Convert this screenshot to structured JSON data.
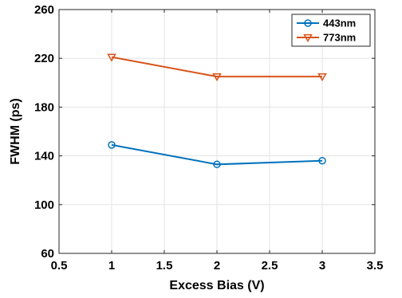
{
  "chart_data": {
    "type": "line",
    "title": "",
    "xlabel": "Excess Bias (V)",
    "ylabel": "FWHM (ps)",
    "xlim": [
      0.5,
      3.5
    ],
    "ylim": [
      60,
      260
    ],
    "xticks": [
      0.5,
      1,
      1.5,
      2,
      2.5,
      3,
      3.5
    ],
    "xtick_labels": [
      "0.5",
      "1",
      "1.5",
      "2",
      "2.5",
      "3",
      "3.5"
    ],
    "yticks": [
      60,
      100,
      140,
      180,
      220,
      260
    ],
    "ytick_labels": [
      "60",
      "100",
      "140",
      "180",
      "220",
      "260"
    ],
    "grid": true,
    "legend_position": "top-right",
    "x": [
      1,
      2,
      3
    ],
    "series": [
      {
        "name": "443nm",
        "values": [
          149,
          133,
          136
        ],
        "color": "#0072BD",
        "marker": "circle"
      },
      {
        "name": "773nm",
        "values": [
          221,
          205,
          205
        ],
        "color": "#D95319",
        "marker": "triangle-down"
      }
    ]
  }
}
